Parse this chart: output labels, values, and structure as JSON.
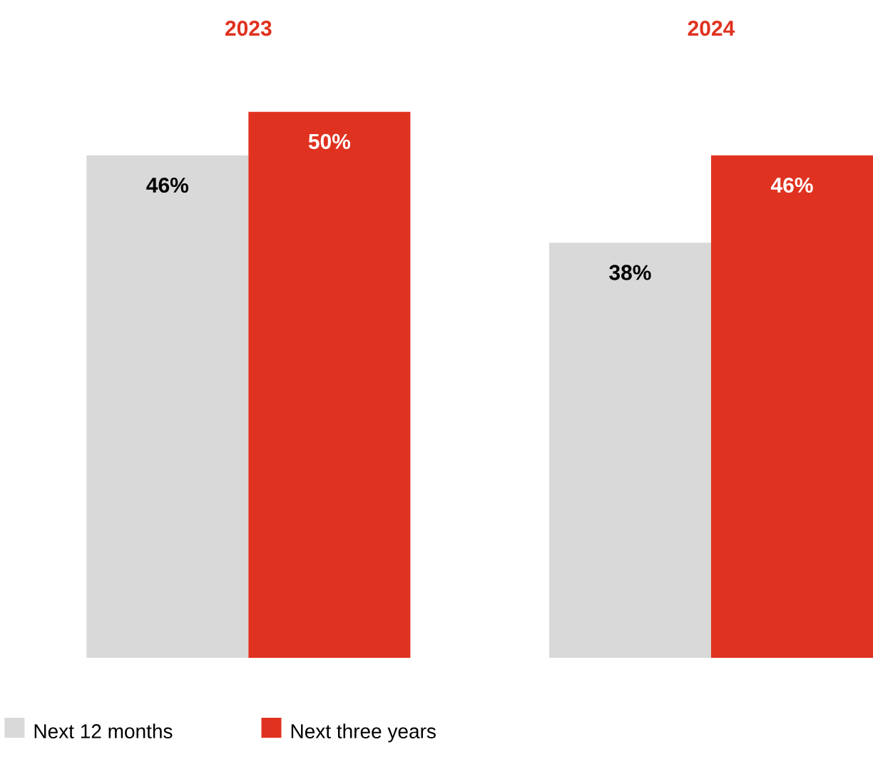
{
  "chart_data": {
    "type": "bar",
    "categories": [
      "2023",
      "2024"
    ],
    "series": [
      {
        "name": "Next 12 months",
        "color": "#d9d9d9",
        "values": [
          46,
          38
        ],
        "value_labels": [
          "46%",
          "38%"
        ]
      },
      {
        "name": "Next three years",
        "color": "#e03220",
        "values": [
          50,
          46
        ],
        "value_labels": [
          "50%",
          "46%"
        ]
      }
    ],
    "legend": "bottom left"
  }
}
